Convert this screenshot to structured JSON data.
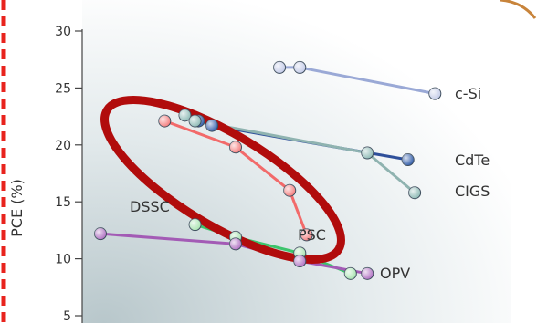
{
  "chart_data": {
    "type": "line",
    "ylabel": "PCE (%)",
    "ylim": [
      4.5,
      30
    ],
    "yticks": [
      5,
      10,
      15,
      20,
      25,
      30
    ],
    "colors": {
      "left_border": "#e8231d",
      "top_right_border": "#c8843b",
      "highlight_ellipse": "#b10c0c"
    },
    "series": [
      {
        "name": "c-Si",
        "color": "#9aa9d6",
        "marker": "#c3cbe8",
        "points": [
          [
            0.53,
            26.8
          ],
          [
            0.59,
            26.8
          ],
          [
            0.99,
            24.5
          ]
        ]
      },
      {
        "name": "CdTe",
        "color": "#2e4f9a",
        "marker": "#2e5aa8",
        "points": [
          [
            0.29,
            22.1
          ],
          [
            0.33,
            21.7
          ],
          [
            0.91,
            18.7
          ]
        ]
      },
      {
        "name": "CIGS",
        "color": "#8fb3b0",
        "marker": "#8cb9b4",
        "points": [
          [
            0.25,
            22.6
          ],
          [
            0.28,
            22.1
          ],
          [
            0.79,
            19.3
          ],
          [
            0.93,
            15.8
          ]
        ]
      },
      {
        "name": "PSC",
        "color": "#f26a6a",
        "marker": "#f47b7b",
        "points": [
          [
            0.19,
            22.1
          ],
          [
            0.4,
            19.8
          ],
          [
            0.56,
            16.0
          ],
          [
            0.61,
            12.1
          ]
        ]
      },
      {
        "name": "DSSC",
        "color": "#3cc46c",
        "marker": "#a8e3b0",
        "points": [
          [
            0.28,
            13.0
          ],
          [
            0.4,
            11.9
          ],
          [
            0.59,
            10.5
          ],
          [
            0.74,
            8.7
          ]
        ]
      },
      {
        "name": "OPV",
        "color": "#a35bb5",
        "marker": "#b070c2",
        "points": [
          [
            0.0,
            12.2
          ],
          [
            0.4,
            11.3
          ],
          [
            0.59,
            9.8
          ],
          [
            0.79,
            8.7
          ]
        ]
      }
    ]
  }
}
